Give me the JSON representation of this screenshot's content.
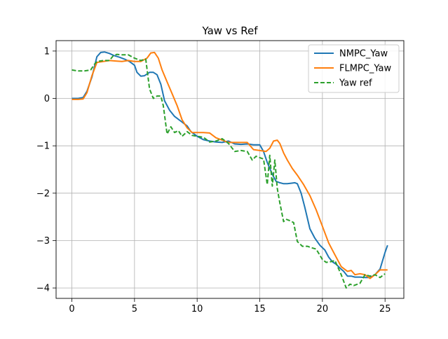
{
  "chart_data": {
    "type": "line",
    "title": "Yaw vs Ref",
    "xlabel": "",
    "ylabel": "",
    "xlim": [
      -1.26,
      26.5
    ],
    "ylim": [
      -4.22,
      1.22
    ],
    "xticks": [
      0,
      5,
      10,
      15,
      20,
      25
    ],
    "yticks": [
      -4,
      -3,
      -2,
      -1,
      0,
      1
    ],
    "grid": true,
    "legend_position": "top-right",
    "series": [
      {
        "name": "NMPC_Yaw",
        "color": "#1f77b4",
        "style": "solid",
        "x": [
          0,
          0.5,
          0.9,
          1.2,
          1.6,
          2.0,
          2.3,
          2.6,
          3.0,
          3.4,
          3.8,
          4.2,
          4.6,
          5.0,
          5.2,
          5.5,
          5.8,
          6.2,
          6.5,
          6.8,
          7.1,
          7.4,
          7.8,
          8.2,
          8.7,
          9.2,
          9.5,
          10.0,
          10.5,
          11.0,
          11.5,
          12.0,
          12.5,
          13.0,
          13.5,
          14.0,
          14.5,
          15.0,
          15.3,
          15.6,
          16.0,
          16.3,
          16.6,
          16.9,
          17.2,
          17.5,
          17.8,
          18.0,
          18.3,
          18.6,
          19.0,
          19.4,
          19.8,
          20.2,
          20.5,
          20.8,
          21.1,
          21.4,
          21.7,
          22.0,
          22.3,
          22.6,
          23.0,
          23.4,
          23.8,
          24.2,
          24.6,
          25.0,
          25.2
        ],
        "y": [
          0,
          0,
          0.02,
          0.15,
          0.45,
          0.88,
          0.97,
          0.98,
          0.95,
          0.9,
          0.87,
          0.83,
          0.78,
          0.7,
          0.55,
          0.47,
          0.48,
          0.55,
          0.55,
          0.5,
          0.3,
          -0.05,
          -0.25,
          -0.38,
          -0.48,
          -0.58,
          -0.7,
          -0.8,
          -0.87,
          -0.9,
          -0.92,
          -0.93,
          -0.9,
          -0.96,
          -0.97,
          -0.96,
          -0.98,
          -0.98,
          -1.12,
          -1.35,
          -1.6,
          -1.75,
          -1.78,
          -1.8,
          -1.8,
          -1.79,
          -1.78,
          -1.8,
          -2.0,
          -2.3,
          -2.75,
          -2.95,
          -3.1,
          -3.2,
          -3.35,
          -3.45,
          -3.5,
          -3.58,
          -3.65,
          -3.75,
          -3.75,
          -3.77,
          -3.77,
          -3.78,
          -3.78,
          -3.72,
          -3.6,
          -3.25,
          -3.1
        ]
      },
      {
        "name": "FLMPC_Yaw",
        "color": "#ff7f0e",
        "style": "solid",
        "x": [
          0,
          0.5,
          0.9,
          1.2,
          1.6,
          2.0,
          2.5,
          3.0,
          3.5,
          4.0,
          4.5,
          5.0,
          5.5,
          6.0,
          6.3,
          6.6,
          6.9,
          7.2,
          7.6,
          8.0,
          8.4,
          8.8,
          9.2,
          9.6,
          10.0,
          10.5,
          11.0,
          11.5,
          12.0,
          12.5,
          13.0,
          13.5,
          14.0,
          14.5,
          15.0,
          15.5,
          15.8,
          16.1,
          16.4,
          16.6,
          16.9,
          17.2,
          17.6,
          18.0,
          18.5,
          19.0,
          19.5,
          20.0,
          20.5,
          21.0,
          21.5,
          22.0,
          22.3,
          22.6,
          23.0,
          23.4,
          23.8,
          24.2,
          24.6,
          25.0,
          25.2
        ],
        "y": [
          -0.02,
          -0.02,
          -0.01,
          0.12,
          0.48,
          0.76,
          0.78,
          0.8,
          0.79,
          0.78,
          0.8,
          0.78,
          0.78,
          0.85,
          0.96,
          0.97,
          0.85,
          0.6,
          0.35,
          0.1,
          -0.15,
          -0.45,
          -0.62,
          -0.72,
          -0.72,
          -0.72,
          -0.73,
          -0.83,
          -0.88,
          -0.93,
          -0.93,
          -0.93,
          -0.93,
          -1.08,
          -1.1,
          -1.12,
          -1.05,
          -0.9,
          -0.88,
          -0.95,
          -1.15,
          -1.3,
          -1.48,
          -1.62,
          -1.82,
          -2.05,
          -2.35,
          -2.7,
          -3.05,
          -3.3,
          -3.55,
          -3.65,
          -3.63,
          -3.72,
          -3.7,
          -3.72,
          -3.8,
          -3.72,
          -3.62,
          -3.62,
          -3.62
        ]
      },
      {
        "name": "Yaw ref",
        "color": "#2ca02c",
        "style": "dashed",
        "x": [
          0,
          0.5,
          1.0,
          1.5,
          1.8,
          2.0,
          2.5,
          3.0,
          3.3,
          3.6,
          4.0,
          4.5,
          5.0,
          5.5,
          5.9,
          6.2,
          6.5,
          6.8,
          7.1,
          7.3,
          7.6,
          7.9,
          8.2,
          8.5,
          8.8,
          9.2,
          9.6,
          10.0,
          10.5,
          11.0,
          11.5,
          12.0,
          12.5,
          13.0,
          13.5,
          14.0,
          14.4,
          14.7,
          15.0,
          15.3,
          15.6,
          15.8,
          16.0,
          16.2,
          16.4,
          16.6,
          16.9,
          17.1,
          17.4,
          17.7,
          18.0,
          18.4,
          18.8,
          19.1,
          19.5,
          20.0,
          20.3,
          20.6,
          21.0,
          21.5,
          21.9,
          22.2,
          22.5,
          23.0,
          23.4,
          23.8,
          24.2,
          24.6,
          25.0
        ],
        "y": [
          0.6,
          0.58,
          0.58,
          0.6,
          0.72,
          0.78,
          0.8,
          0.8,
          0.9,
          0.93,
          0.92,
          0.92,
          0.85,
          0.8,
          0.83,
          0.2,
          0.0,
          0.05,
          0.05,
          -0.15,
          -0.75,
          -0.6,
          -0.72,
          -0.68,
          -0.8,
          -0.7,
          -0.78,
          -0.8,
          -0.82,
          -0.92,
          -0.9,
          -0.85,
          -0.95,
          -1.12,
          -1.1,
          -1.12,
          -1.3,
          -1.22,
          -1.25,
          -1.28,
          -1.82,
          -1.2,
          -1.85,
          -1.3,
          -1.9,
          -2.2,
          -2.6,
          -2.55,
          -2.58,
          -2.62,
          -3.02,
          -3.12,
          -3.12,
          -3.15,
          -3.18,
          -3.4,
          -3.46,
          -3.45,
          -3.42,
          -3.72,
          -4.0,
          -3.92,
          -3.95,
          -3.9,
          -3.72,
          -3.75,
          -3.72,
          -3.78,
          -3.7
        ]
      }
    ]
  }
}
